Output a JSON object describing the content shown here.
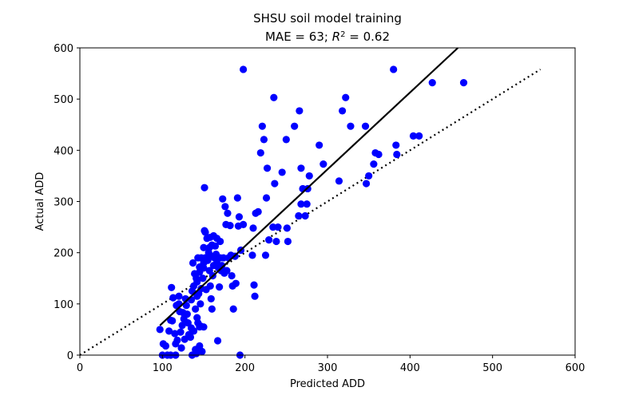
{
  "chart_data": {
    "type": "scatter",
    "title": "SHSU soil model training",
    "subtitle_prefix": "MAE = 63; ",
    "subtitle_r": "R",
    "subtitle_exp": "2",
    "subtitle_suffix": " = 0.62",
    "xlabel": "Predicted ADD",
    "ylabel": "Actual ADD",
    "xlim": [
      0,
      600
    ],
    "ylim": [
      0,
      600
    ],
    "xticks": [
      0,
      100,
      200,
      300,
      400,
      500,
      600
    ],
    "yticks": [
      0,
      100,
      200,
      300,
      400,
      500,
      600
    ],
    "grid": false,
    "point_color": "#0000ff",
    "line_color": "#000000",
    "points": [
      [
        97,
        50
      ],
      [
        100,
        0
      ],
      [
        101,
        22
      ],
      [
        104,
        18
      ],
      [
        106,
        0
      ],
      [
        108,
        47
      ],
      [
        110,
        0
      ],
      [
        110,
        68
      ],
      [
        111,
        132
      ],
      [
        112,
        67
      ],
      [
        113,
        112
      ],
      [
        115,
        42
      ],
      [
        116,
        22
      ],
      [
        116,
        0
      ],
      [
        117,
        97
      ],
      [
        118,
        29
      ],
      [
        120,
        115
      ],
      [
        120,
        100
      ],
      [
        121,
        85
      ],
      [
        122,
        45
      ],
      [
        123,
        14
      ],
      [
        124,
        58
      ],
      [
        125,
        83
      ],
      [
        126,
        71
      ],
      [
        127,
        31
      ],
      [
        128,
        110
      ],
      [
        129,
        97
      ],
      [
        130,
        80
      ],
      [
        131,
        63
      ],
      [
        132,
        40
      ],
      [
        134,
        35
      ],
      [
        135,
        53
      ],
      [
        135,
        108
      ],
      [
        136,
        125
      ],
      [
        136,
        0
      ],
      [
        137,
        180
      ],
      [
        138,
        47
      ],
      [
        138,
        135
      ],
      [
        139,
        159
      ],
      [
        140,
        90
      ],
      [
        140,
        11
      ],
      [
        141,
        150
      ],
      [
        141,
        3
      ],
      [
        142,
        73
      ],
      [
        142,
        115
      ],
      [
        142,
        143
      ],
      [
        143,
        190
      ],
      [
        143,
        63
      ],
      [
        144,
        120
      ],
      [
        145,
        172
      ],
      [
        145,
        55
      ],
      [
        145,
        162
      ],
      [
        145,
        18
      ],
      [
        146,
        100
      ],
      [
        146,
        57
      ],
      [
        147,
        130
      ],
      [
        147,
        190
      ],
      [
        148,
        7
      ],
      [
        149,
        150
      ],
      [
        150,
        210
      ],
      [
        150,
        55
      ],
      [
        150,
        170
      ],
      [
        150,
        180
      ],
      [
        151,
        327
      ],
      [
        151,
        243
      ],
      [
        152,
        240
      ],
      [
        152,
        190
      ],
      [
        153,
        128
      ],
      [
        154,
        228
      ],
      [
        155,
        185
      ],
      [
        156,
        200
      ],
      [
        157,
        210
      ],
      [
        157,
        165
      ],
      [
        158,
        230
      ],
      [
        158,
        135
      ],
      [
        159,
        110
      ],
      [
        159,
        193
      ],
      [
        160,
        90
      ],
      [
        160,
        215
      ],
      [
        161,
        155
      ],
      [
        162,
        175
      ],
      [
        162,
        233
      ],
      [
        163,
        190
      ],
      [
        164,
        213
      ],
      [
        165,
        197
      ],
      [
        166,
        228
      ],
      [
        166,
        180
      ],
      [
        167,
        28
      ],
      [
        168,
        170
      ],
      [
        169,
        133
      ],
      [
        170,
        190
      ],
      [
        170,
        222
      ],
      [
        171,
        165
      ],
      [
        172,
        175
      ],
      [
        173,
        305
      ],
      [
        174,
        190
      ],
      [
        175,
        160
      ],
      [
        176,
        290
      ],
      [
        177,
        255
      ],
      [
        178,
        165
      ],
      [
        179,
        277
      ],
      [
        180,
        190
      ],
      [
        182,
        253
      ],
      [
        183,
        195
      ],
      [
        184,
        155
      ],
      [
        185,
        135
      ],
      [
        186,
        90
      ],
      [
        188,
        193
      ],
      [
        189,
        140
      ],
      [
        191,
        307
      ],
      [
        192,
        252
      ],
      [
        193,
        270
      ],
      [
        194,
        0
      ],
      [
        195,
        205
      ],
      [
        198,
        558
      ],
      [
        198,
        255
      ],
      [
        209,
        195
      ],
      [
        210,
        248
      ],
      [
        211,
        137
      ],
      [
        212,
        115
      ],
      [
        213,
        277
      ],
      [
        216,
        280
      ],
      [
        219,
        395
      ],
      [
        221,
        447
      ],
      [
        223,
        421
      ],
      [
        225,
        195
      ],
      [
        226,
        307
      ],
      [
        227,
        365
      ],
      [
        229,
        225
      ],
      [
        234,
        250
      ],
      [
        235,
        503
      ],
      [
        236,
        335
      ],
      [
        238,
        222
      ],
      [
        240,
        250
      ],
      [
        245,
        357
      ],
      [
        250,
        421
      ],
      [
        251,
        248
      ],
      [
        252,
        222
      ],
      [
        260,
        447
      ],
      [
        265,
        272
      ],
      [
        266,
        477
      ],
      [
        268,
        295
      ],
      [
        268,
        365
      ],
      [
        270,
        325
      ],
      [
        273,
        272
      ],
      [
        275,
        295
      ],
      [
        276,
        325
      ],
      [
        278,
        350
      ],
      [
        290,
        410
      ],
      [
        295,
        373
      ],
      [
        314,
        340
      ],
      [
        318,
        477
      ],
      [
        322,
        503
      ],
      [
        328,
        447
      ],
      [
        346,
        447
      ],
      [
        347,
        335
      ],
      [
        350,
        350
      ],
      [
        356,
        373
      ],
      [
        358,
        395
      ],
      [
        362,
        392
      ],
      [
        380,
        558
      ],
      [
        383,
        410
      ],
      [
        384,
        392
      ],
      [
        404,
        428
      ],
      [
        411,
        428
      ],
      [
        427,
        532
      ],
      [
        465,
        532
      ]
    ],
    "fit_line": {
      "style": "solid",
      "x": [
        97,
        458
      ],
      "y": [
        58,
        600
      ]
    },
    "identity_line": {
      "style": "dotted",
      "x": [
        0,
        558
      ],
      "y": [
        0,
        558
      ]
    }
  }
}
